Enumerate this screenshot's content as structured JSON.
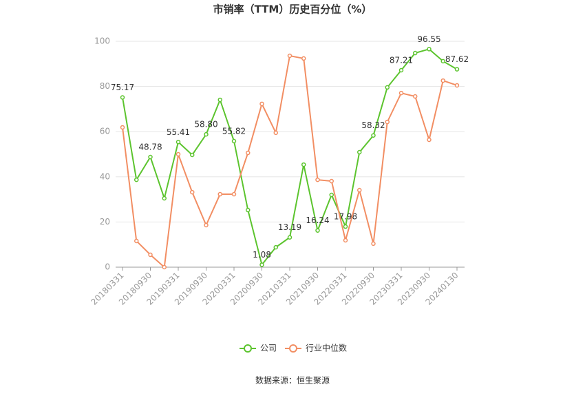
{
  "chart_data": {
    "type": "line",
    "title": "市销率（TTM）历史百分位（%）",
    "source": "数据来源：恒生聚源",
    "categories": [
      "20180331",
      null,
      "20180930",
      null,
      "20190331",
      null,
      "20190930",
      null,
      "20200331",
      null,
      "20200930",
      null,
      "20210331",
      null,
      "20210930",
      null,
      "20220331",
      null,
      "20220930",
      null,
      "20230331",
      null,
      "20230930",
      null,
      "20240130"
    ],
    "series": [
      {
        "name": "公司",
        "color": "#5cc42e",
        "values": [
          75.17,
          38.7,
          48.78,
          30.5,
          55.41,
          49.7,
          58.8,
          74.1,
          55.82,
          25.3,
          1.08,
          8.8,
          13.19,
          45.4,
          16.24,
          32.0,
          17.98,
          50.9,
          58.32,
          79.6,
          87.21,
          94.8,
          96.55,
          91.2,
          87.62
        ],
        "value_labels": [
          "75.17",
          null,
          "48.78",
          null,
          "55.41",
          null,
          "58.80",
          null,
          "55.82",
          null,
          "1.08",
          null,
          "13.19",
          null,
          "16.24",
          null,
          "17.98",
          null,
          "58.32",
          null,
          "87.21",
          null,
          "96.55",
          null,
          "87.62"
        ]
      },
      {
        "name": "行业中位数",
        "color": "#f28e63",
        "values": [
          61.9,
          11.6,
          5.5,
          0,
          50.0,
          33.2,
          18.6,
          32.3,
          32.3,
          50.6,
          72.3,
          59.5,
          93.6,
          92.4,
          38.7,
          38.1,
          11.9,
          34.1,
          10.4,
          64.3,
          77.1,
          75.6,
          56.4,
          82.6,
          80.5
        ]
      }
    ],
    "ylim": [
      0,
      100
    ],
    "yticks": [
      0,
      20,
      40,
      60,
      80,
      100
    ],
    "grid": true,
    "legend": "bottom"
  }
}
